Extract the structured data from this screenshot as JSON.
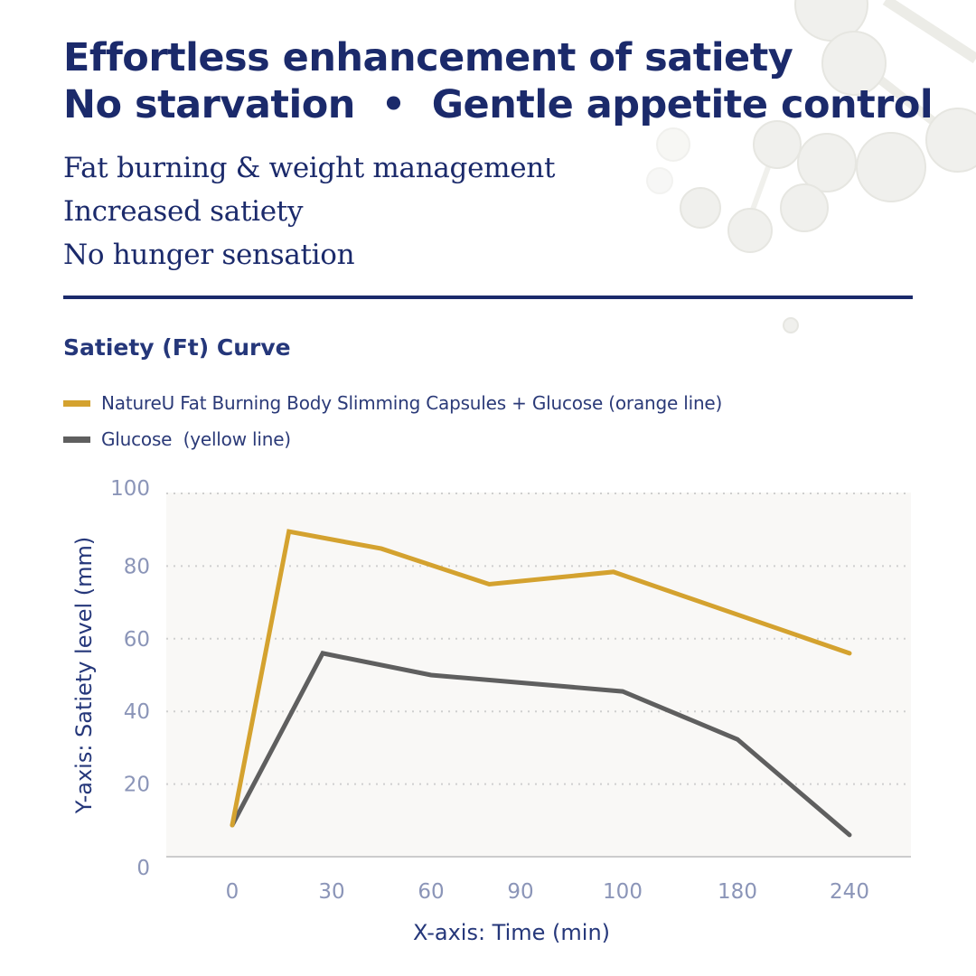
{
  "header": {
    "headline_line1": "Effortless enhancement of satiety",
    "headline_line2": "No starvation  •  Gentle appetite control",
    "benefits": [
      "Fat burning & weight management",
      "Increased satiety",
      "No hunger sensation"
    ],
    "brand_color": "#1b2a6b"
  },
  "decoration": {
    "icon": "molecule-icon"
  },
  "chart_data": {
    "type": "line",
    "title": "Satiety (Ft) Curve",
    "xlabel": "X-axis: Time (min)",
    "ylabel": "Y-axis: Satiety level (mm)",
    "x_tick_labels": [
      "0",
      "30",
      "60",
      "90",
      "100",
      "180",
      "240"
    ],
    "y_ticks": [
      0,
      20,
      40,
      60,
      80,
      100
    ],
    "ylim": [
      0,
      100
    ],
    "grid": "horizontal-dotted",
    "legend_position": "top-left",
    "series": [
      {
        "name": "NatureU Fat Burning Body Slimming Capsules + Glucose (orange line)",
        "color": "#d4a22f",
        "x_index": [
          0,
          0.57,
          1.5,
          2.65,
          3.91,
          6
        ],
        "values": [
          8.7,
          89.5,
          84.8,
          75,
          78.4,
          56
        ]
      },
      {
        "name": "Glucose  (yellow line)",
        "color": "#5f5f5f",
        "x_index": [
          0,
          0.91,
          2,
          4,
          5,
          6
        ],
        "values": [
          8.7,
          56,
          50,
          45.5,
          32.3,
          6
        ]
      }
    ]
  }
}
